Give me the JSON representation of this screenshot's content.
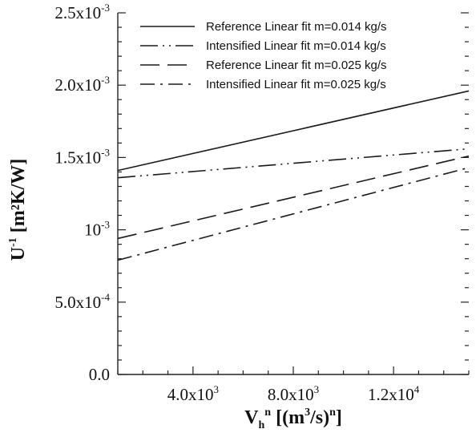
{
  "chart_data": {
    "type": "line",
    "xlabel": {
      "base": "V",
      "sub": "h",
      "sup": "n",
      "units_prefix": " [(m",
      "units_sup": "3",
      "units_mid": "/s)",
      "units_sup2": "n",
      "units_suffix": "]"
    },
    "ylabel": {
      "base": "U",
      "sup": "-1",
      "units": " [m²K/W]"
    },
    "xlim": [
      1000,
      15000
    ],
    "ylim": [
      0,
      0.0025
    ],
    "x_ticks": [
      {
        "value": 4000,
        "mantissa": "4.0x10",
        "exp": "3"
      },
      {
        "value": 8000,
        "mantissa": "8.0x10",
        "exp": "3"
      },
      {
        "value": 12000,
        "mantissa": "1.2x10",
        "exp": "4"
      }
    ],
    "y_ticks": [
      {
        "value": 0,
        "mantissa": "0.0",
        "exp": ""
      },
      {
        "value": 0.0005,
        "mantissa": "5.0x10",
        "exp": "-4"
      },
      {
        "value": 0.001,
        "mantissa": "10",
        "exp": "-3"
      },
      {
        "value": 0.0015,
        "mantissa": "1.5x10",
        "exp": "-3"
      },
      {
        "value": 0.002,
        "mantissa": "2.0x10",
        "exp": "-3"
      },
      {
        "value": 0.0025,
        "mantissa": "2.5x10",
        "exp": "-3"
      }
    ],
    "series": [
      {
        "name": "Reference Linear fit m=0.014 kg/s",
        "style": "solid",
        "x": [
          1000,
          15000
        ],
        "y": [
          0.00141,
          0.00196
        ]
      },
      {
        "name": "Intensified Linear fit m=0.014 kg/s",
        "style": "dash-dot-dot",
        "x": [
          1000,
          15000
        ],
        "y": [
          0.00136,
          0.00156
        ]
      },
      {
        "name": "Reference Linear fit m=0.025 kg/s",
        "style": "long-dash",
        "x": [
          1000,
          15000
        ],
        "y": [
          0.00094,
          0.00151
        ]
      },
      {
        "name": "Intensified Linear fit m=0.025 kg/s",
        "style": "dash-dot",
        "x": [
          1000,
          15000
        ],
        "y": [
          0.00079,
          0.00143
        ]
      }
    ],
    "legend_position": "top-right",
    "grid": false
  }
}
